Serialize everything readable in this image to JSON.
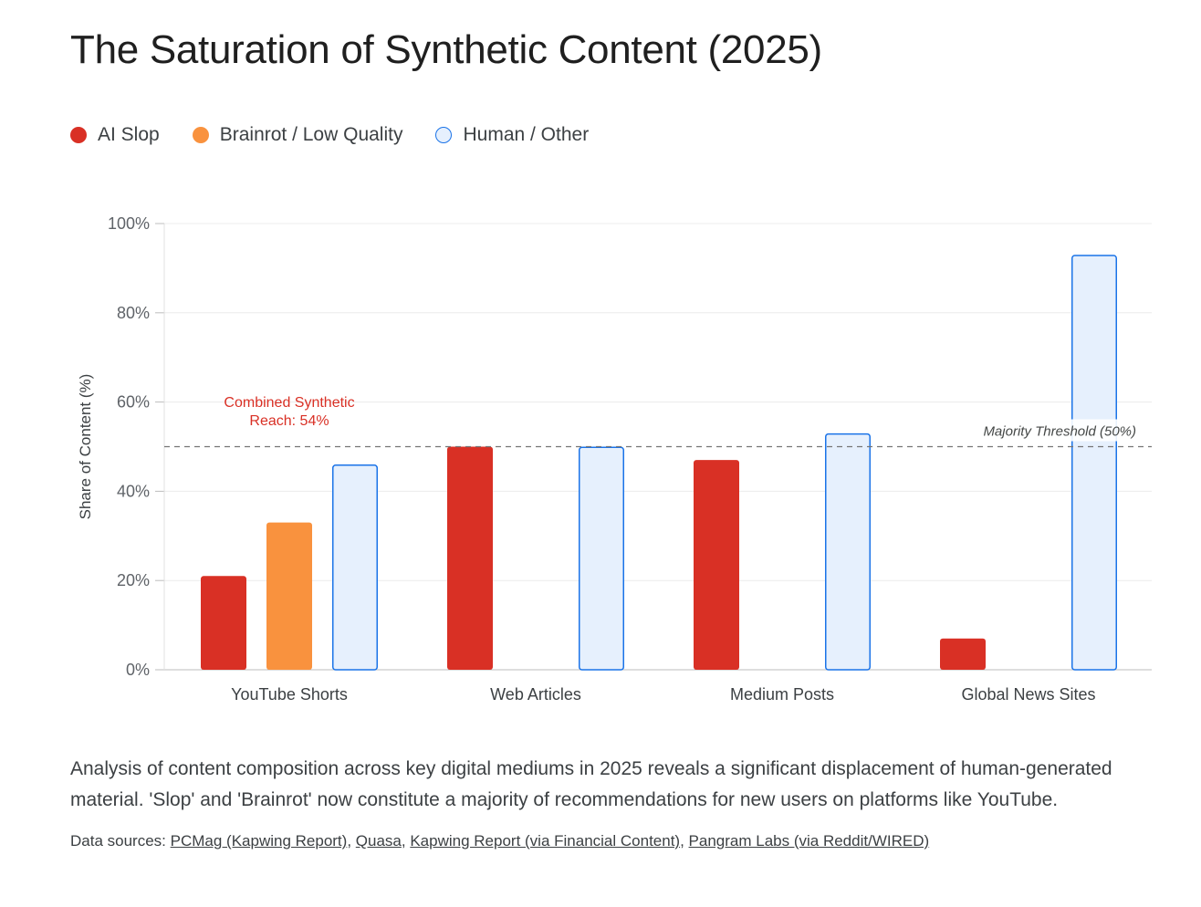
{
  "title": "The Saturation of Synthetic Content (2025)",
  "colors": {
    "ai_slop": "#d93025",
    "brainrot": "#f9923e",
    "human_fill": "#e6f0fd",
    "human_stroke": "#1a73e8",
    "annotation": "#d93025",
    "threshold": "#757575"
  },
  "legend": [
    {
      "label": "AI Slop"
    },
    {
      "label": "Brainrot / Low Quality"
    },
    {
      "label": "Human / Other"
    }
  ],
  "chart_data": {
    "type": "bar",
    "title": "The Saturation of Synthetic Content (2025)",
    "xlabel": "",
    "ylabel": "Share of Content (%)",
    "ylim": [
      0,
      100
    ],
    "yticks": [
      0,
      20,
      40,
      60,
      80,
      100
    ],
    "ytick_labels": [
      "0%",
      "20%",
      "40%",
      "60%",
      "80%",
      "100%"
    ],
    "grid": true,
    "legend_position": "top-left",
    "categories": [
      "YouTube Shorts",
      "Web Articles",
      "Medium Posts",
      "Global News Sites"
    ],
    "series": [
      {
        "name": "AI Slop",
        "values": [
          21,
          50,
          47,
          7
        ]
      },
      {
        "name": "Brainrot / Low Quality",
        "values": [
          33,
          null,
          null,
          null
        ]
      },
      {
        "name": "Human / Other",
        "values": [
          46,
          50,
          53,
          93
        ]
      }
    ],
    "threshold": {
      "value": 50,
      "label": "Majority Threshold (50%)"
    },
    "annotation": {
      "lines": [
        "Combined Synthetic",
        "Reach: 54%"
      ],
      "category": "YouTube Shorts"
    }
  },
  "description": "Analysis of content composition across key digital mediums in 2025 reveals a significant displacement of human-generated material. 'Slop' and 'Brainrot' now constitute a majority of recommendations for new users on platforms like YouTube.",
  "sources": {
    "prefix": "Data sources:",
    "links": [
      "PCMag (Kapwing Report)",
      "Quasa",
      "Kapwing Report (via Financial Content)",
      "Pangram Labs (via Reddit/WIRED)"
    ]
  }
}
